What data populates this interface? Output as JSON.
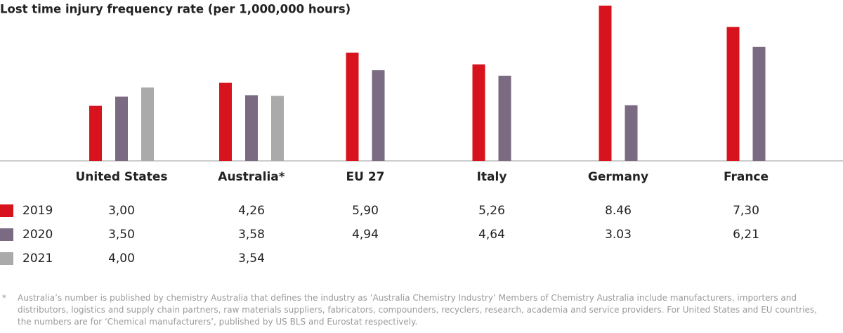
{
  "chart_data": {
    "type": "bar",
    "title": "Lost time injury frequency rate (per 1,000,000 hours)",
    "categories": [
      "United States",
      "Australia*",
      "EU 27",
      "Italy",
      "Germany",
      "France"
    ],
    "series": [
      {
        "name": "2019",
        "color": "#d7141e",
        "values": [
          3.0,
          4.26,
          5.9,
          5.26,
          8.46,
          7.3
        ],
        "value_labels": [
          "3,00",
          "4,26",
          "5,90",
          "5,26",
          "8.46",
          "7,30"
        ]
      },
      {
        "name": "2020",
        "color": "#7a6a82",
        "values": [
          3.5,
          3.58,
          4.94,
          4.64,
          3.03,
          6.21
        ],
        "value_labels": [
          "3,50",
          "3,58",
          "4,94",
          "4,64",
          "3.03",
          "6,21"
        ]
      },
      {
        "name": "2021",
        "color": "#aaaaaa",
        "values": [
          4.0,
          3.54,
          null,
          null,
          null,
          null
        ],
        "value_labels": [
          "4,00",
          "3,54",
          null,
          null,
          null,
          null
        ]
      }
    ]
  },
  "footnote": {
    "marker": "*",
    "text": "Australia’s number is published by chemistry Australia that defines the industry as ‘Australia Chemistry Industry’ Members of Chemistry Australia include manufacturers, importers and distributors, logistics and supply chain partners, raw materials suppliers, fabricators, compounders, recyclers, research, academia and service providers. For United States and EU countries, the numbers are for ‘Chemical manufacturers’, published by US BLS and Eurostat respectively."
  }
}
